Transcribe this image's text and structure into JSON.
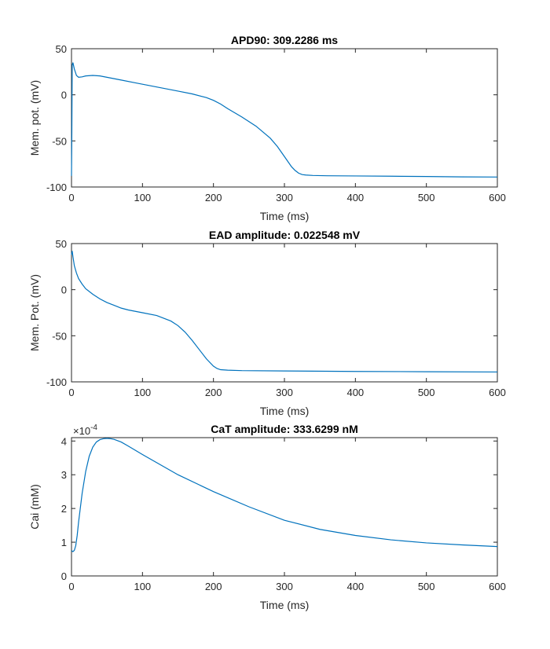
{
  "chart_data": [
    {
      "type": "line",
      "title": "APD90: 309.2286 ms",
      "xlabel": "Time (ms)",
      "ylabel": "Mem. pot. (mV)",
      "xlim": [
        0,
        600
      ],
      "ylim": [
        -100,
        50
      ],
      "xticks": [
        0,
        100,
        200,
        300,
        400,
        500,
        600
      ],
      "yticks": [
        -100,
        -50,
        0,
        50
      ],
      "exponent": "",
      "grid": false,
      "series": [
        {
          "color": "#0072bd",
          "x": [
            0,
            0.5,
            1,
            2,
            4,
            7,
            10,
            15,
            20,
            30,
            40,
            50,
            70,
            90,
            110,
            130,
            150,
            170,
            190,
            200,
            210,
            220,
            240,
            260,
            280,
            290,
            300,
            310,
            315,
            320,
            325,
            330,
            340,
            360,
            400,
            450,
            500,
            550,
            600
          ],
          "y": [
            -88,
            -40,
            32,
            35,
            28,
            21,
            19,
            19.5,
            20.5,
            21,
            20.5,
            19,
            16,
            13,
            10,
            7,
            4,
            1,
            -3,
            -6,
            -10,
            -15,
            -24,
            -34,
            -47,
            -56,
            -67,
            -78,
            -82,
            -85,
            -86.5,
            -87,
            -87.5,
            -87.8,
            -88,
            -88.3,
            -88.6,
            -89,
            -89.2
          ]
        }
      ]
    },
    {
      "type": "line",
      "title": "EAD amplitude: 0.022548 mV",
      "xlabel": "Time (ms)",
      "ylabel": "Mem. Pot. (mV)",
      "xlim": [
        0,
        600
      ],
      "ylim": [
        -100,
        50
      ],
      "xticks": [
        0,
        100,
        200,
        300,
        400,
        500,
        600
      ],
      "yticks": [
        -100,
        -50,
        0,
        50
      ],
      "exponent": "",
      "grid": false,
      "series": [
        {
          "color": "#0072bd",
          "x": [
            0,
            1,
            2,
            4,
            7,
            10,
            15,
            20,
            30,
            40,
            50,
            60,
            70,
            80,
            100,
            120,
            140,
            150,
            160,
            170,
            180,
            190,
            200,
            205,
            210,
            220,
            240,
            300,
            400,
            500,
            600
          ],
          "y": [
            38,
            42,
            36,
            26,
            18,
            12,
            6,
            1,
            -5,
            -10,
            -14,
            -17,
            -20,
            -22,
            -25,
            -28,
            -34,
            -39,
            -46,
            -55,
            -65,
            -75,
            -83,
            -85.5,
            -86.8,
            -87.3,
            -87.8,
            -88.2,
            -88.7,
            -89,
            -89.3
          ]
        }
      ]
    },
    {
      "type": "line",
      "title": "CaT amplitude: 333.6299 nM",
      "xlabel": "Time (ms)",
      "ylabel": "Cai (mM)",
      "xlim": [
        0,
        600
      ],
      "ylim": [
        0,
        4.1
      ],
      "xticks": [
        0,
        100,
        200,
        300,
        400,
        500,
        600
      ],
      "yticks": [
        0,
        1,
        2,
        3,
        4
      ],
      "exponent": "10-4",
      "grid": false,
      "series": [
        {
          "color": "#0072bd",
          "x": [
            0,
            2,
            4,
            6,
            8,
            10,
            15,
            20,
            25,
            30,
            35,
            40,
            45,
            50,
            55,
            60,
            70,
            80,
            100,
            150,
            200,
            250,
            300,
            350,
            400,
            450,
            500,
            550,
            600
          ],
          "y": [
            0.75,
            0.72,
            0.76,
            0.9,
            1.2,
            1.6,
            2.45,
            3.1,
            3.55,
            3.82,
            3.97,
            4.04,
            4.07,
            4.08,
            4.07,
            4.05,
            3.97,
            3.85,
            3.6,
            3.0,
            2.5,
            2.05,
            1.65,
            1.38,
            1.2,
            1.07,
            0.98,
            0.92,
            0.87
          ]
        }
      ]
    }
  ]
}
